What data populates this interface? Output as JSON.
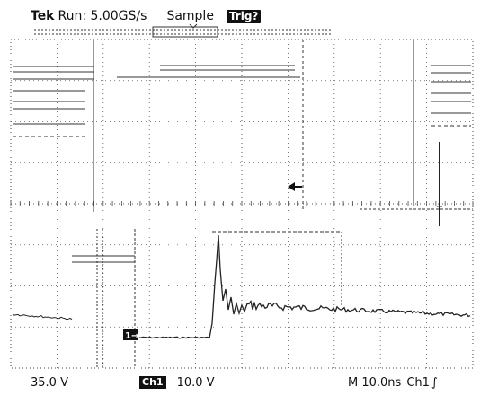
{
  "header": {
    "brand": "Tek",
    "acquisition_rate": "Run: 5.00GS/s",
    "mode": "Sample",
    "trigger_badge": "Trig?"
  },
  "readouts": {
    "left_scale": "35.0 V",
    "channel_badge": "Ch1",
    "channel_scale": "10.0 V",
    "timebase": "M 10.0ns",
    "trigger_source": "Ch1",
    "trigger_slope": "∫"
  },
  "markers": {
    "ground_marker": "1→"
  },
  "colors": {
    "trace": "#222222",
    "graticule": "#444444",
    "badge_bg": "#111111"
  }
}
